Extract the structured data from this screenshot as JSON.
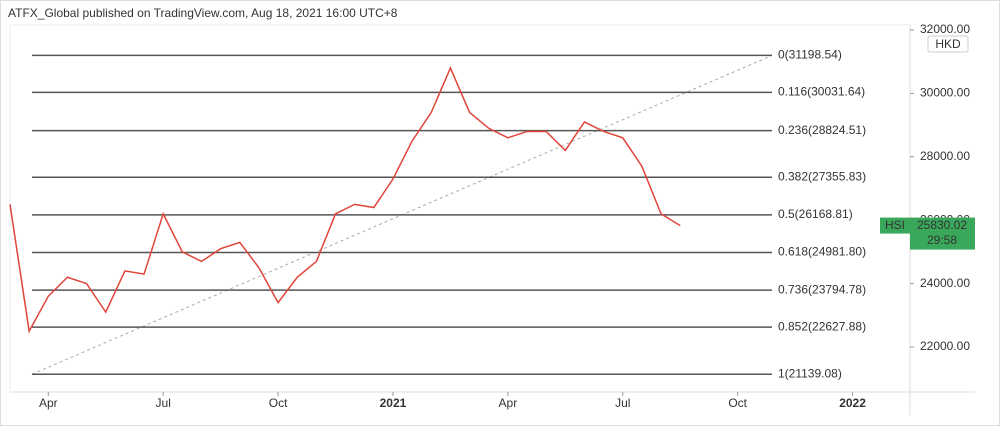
{
  "chart_data": {
    "type": "line",
    "header": "ATFX_Global published on TradingView.com, Aug 18, 2021 16:00 UTC+8",
    "currency": "HKD",
    "countdown": "29:58",
    "x": [
      0,
      0.5,
      1,
      1.5,
      2,
      2.5,
      3,
      3.5,
      4,
      4.5,
      5,
      5.5,
      6,
      6.5,
      7,
      7.5,
      8,
      8.5,
      9,
      9.5,
      10,
      10.5,
      11,
      11.5,
      12,
      12.5,
      13,
      13.5,
      14,
      14.5,
      15,
      15.5,
      16,
      16.5,
      17,
      17.5
    ],
    "series": [
      {
        "name": "HSI",
        "color": "#e0453a",
        "values": [
          26500,
          22500,
          23600,
          24200,
          24000,
          23100,
          24400,
          24300,
          26200,
          25000,
          24700,
          25100,
          25300,
          24500,
          23400,
          24200,
          24700,
          26200,
          26500,
          26400,
          27300,
          28500,
          29400,
          30800,
          29400,
          28900,
          28600,
          28800,
          28800,
          28200,
          29100,
          28800,
          28600,
          27700,
          26200,
          25830.02
        ]
      }
    ],
    "tag_color": "#3aa85a",
    "fib_color": "#555555",
    "fib_levels": [
      {
        "label": "0(31198.54)",
        "value": 31198.54
      },
      {
        "label": "0.116(30031.64)",
        "value": 30031.64
      },
      {
        "label": "0.236(28824.51)",
        "value": 28824.51
      },
      {
        "label": "0.382(27355.83)",
        "value": 27355.83
      },
      {
        "label": "0.5(26168.81)",
        "value": 26168.81
      },
      {
        "label": "0.618(24981.80)",
        "value": 24981.8
      },
      {
        "label": "0.736(23794.78)",
        "value": 23794.78
      },
      {
        "label": "0.852(22627.88)",
        "value": 22627.88
      },
      {
        "label": "1(21139.08)",
        "value": 21139.08
      }
    ],
    "xlim": [
      0,
      23.5
    ],
    "xticks": [
      {
        "value": 1,
        "label": "Apr"
      },
      {
        "value": 4,
        "label": "Jul"
      },
      {
        "value": 7,
        "label": "Oct"
      },
      {
        "value": 10,
        "label": "2021"
      },
      {
        "value": 13,
        "label": "Apr"
      },
      {
        "value": 16,
        "label": "Jul"
      },
      {
        "value": 19,
        "label": "Oct"
      },
      {
        "value": 22,
        "label": "2022"
      }
    ],
    "ylim": [
      20580,
      32158
    ],
    "yticks": [
      {
        "value": 22000,
        "label": "22000.00"
      },
      {
        "value": 24000,
        "label": "24000.00"
      },
      {
        "value": 26000,
        "label": "26000.00"
      },
      {
        "value": 28000,
        "label": "28000.00"
      },
      {
        "value": 30000,
        "label": "30000.00"
      },
      {
        "value": 32000,
        "label": "32000.00"
      }
    ],
    "grid": false
  }
}
